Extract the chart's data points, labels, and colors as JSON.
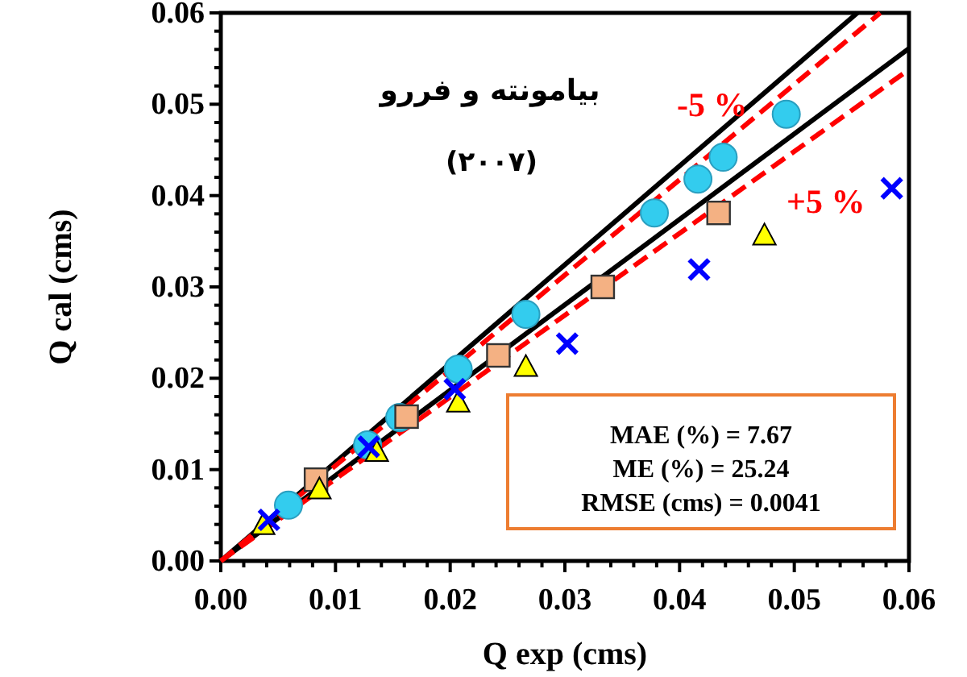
{
  "chart_data": {
    "type": "scatter",
    "title": "بیامونته و فررو",
    "subtitle": "(۲۰۰۷)",
    "xlabel": "Q exp (cms)",
    "ylabel": "Q cal (cms)",
    "xlim": [
      0,
      0.06
    ],
    "ylim": [
      0,
      0.06
    ],
    "xticks": [
      {
        "value": 0,
        "label": "0.00"
      },
      0.01,
      0.02,
      0.03,
      0.04,
      0.05,
      0.06
    ],
    "yticks": [
      {
        "value": 0,
        "label": "0.00"
      },
      0.01,
      0.02,
      0.03,
      0.04,
      0.05,
      0.06
    ],
    "grid": false,
    "series": [
      {
        "type": "line",
        "color": "#000000",
        "line_style": "solid",
        "x": [
          0,
          0.0555
        ],
        "values": [
          0,
          0.06
        ]
      },
      {
        "type": "line",
        "color": "#000000",
        "line_style": "solid",
        "x": [
          0,
          0.06
        ],
        "values": [
          0,
          0.0561
        ]
      },
      {
        "type": "line",
        "color": "#ff0000",
        "line_style": "dashed",
        "x": [
          0,
          0.0575
        ],
        "values": [
          0,
          0.06
        ]
      },
      {
        "type": "line",
        "color": "#ff0000",
        "line_style": "dashed",
        "x": [
          0,
          0.06
        ],
        "values": [
          0,
          0.0538
        ]
      },
      {
        "color": "#33ccee",
        "marker": "circle",
        "x": [
          0.0059,
          0.0128,
          0.0156,
          0.0207,
          0.0266,
          0.0378,
          0.0416,
          0.0438,
          0.0493
        ],
        "values": [
          0.0061,
          0.0127,
          0.0157,
          0.021,
          0.027,
          0.0381,
          0.0418,
          0.0442,
          0.0489
        ]
      },
      {
        "color": "#f4b183",
        "marker": "square",
        "x": [
          0.0083,
          0.0162,
          0.0242,
          0.0333,
          0.0434
        ],
        "values": [
          0.0089,
          0.0158,
          0.0225,
          0.03,
          0.0381
        ]
      },
      {
        "color": "#ffff00",
        "marker": "triangle",
        "x": [
          0.0037,
          0.0086,
          0.0136,
          0.0207,
          0.0266,
          0.0474
        ],
        "values": [
          0.004,
          0.0079,
          0.012,
          0.0174,
          0.0213,
          0.0357
        ]
      },
      {
        "color": "#0000ff",
        "marker": "cross",
        "x": [
          0.0042,
          0.0129,
          0.0204,
          0.0302,
          0.0417,
          0.0585
        ],
        "values": [
          0.0045,
          0.0125,
          0.0188,
          0.0238,
          0.0319,
          0.0408
        ]
      }
    ],
    "annotations": [
      "-5 %",
      "+5 %",
      "MAE (%) = 7.67",
      "ME (%) = 25.24",
      "RMSE (cms) = 0.0041"
    ]
  }
}
